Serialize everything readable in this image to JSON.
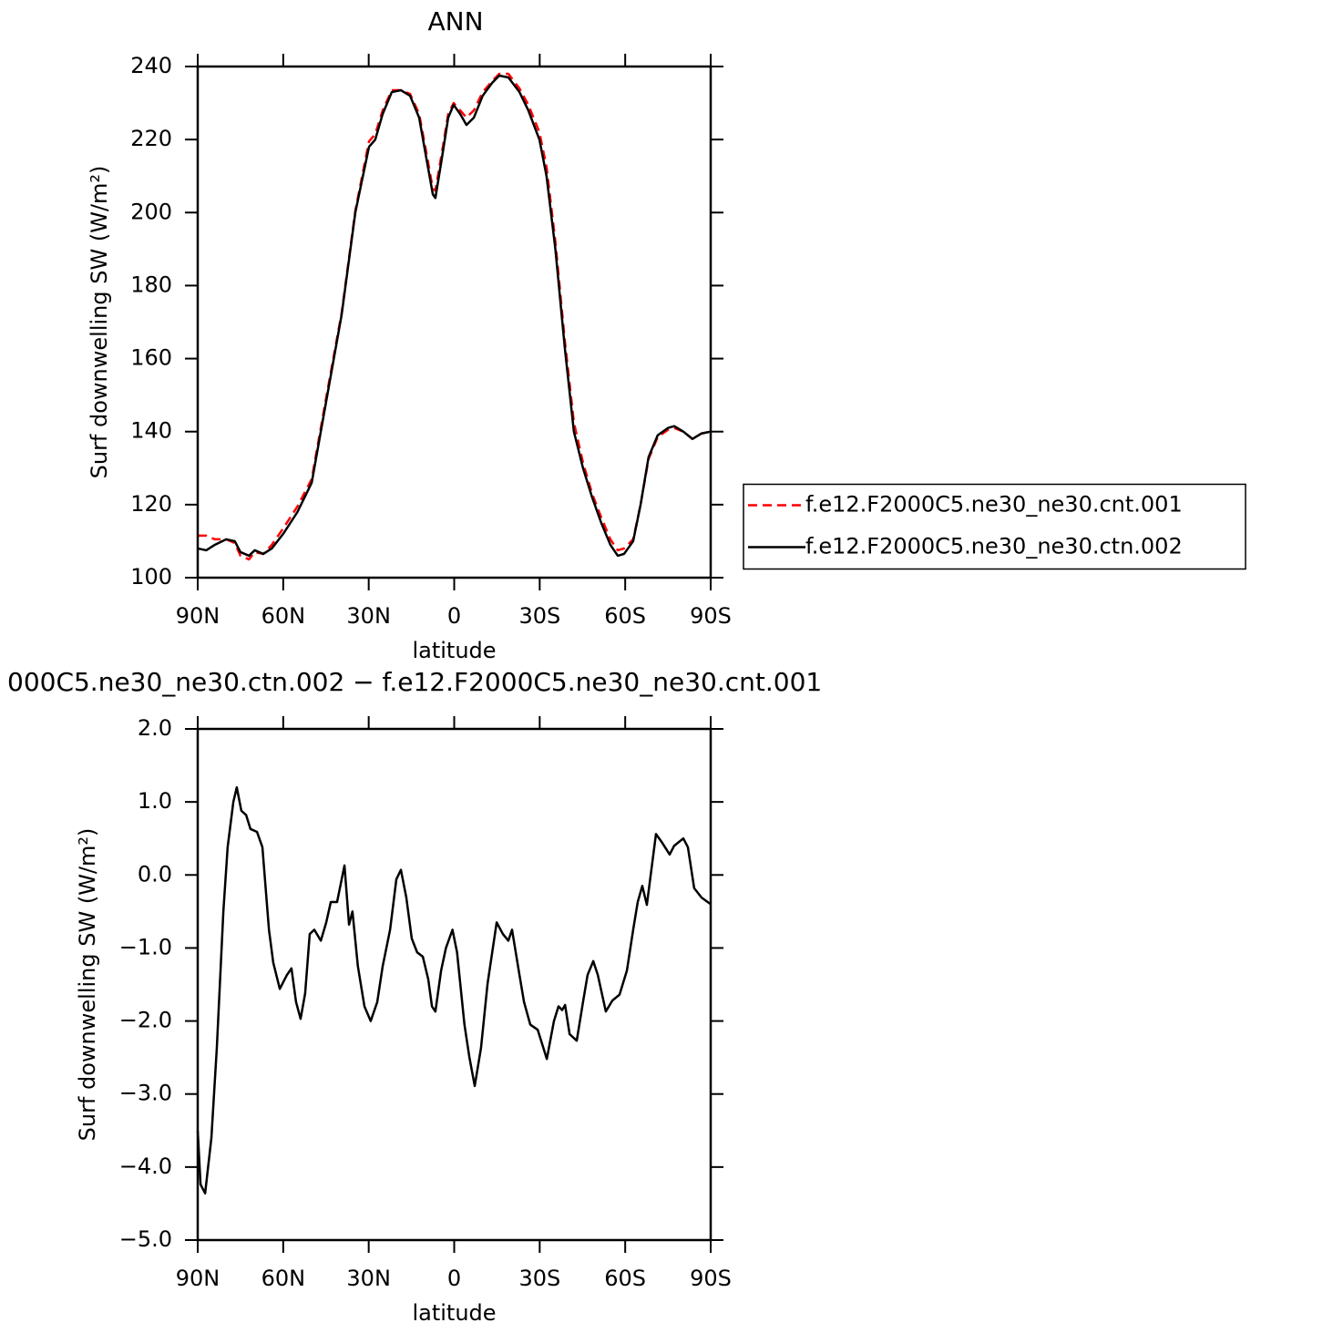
{
  "chart_data": [
    {
      "type": "line",
      "title": "ANN",
      "xlabel": "latitude",
      "ylabel": "Surf downwelling SW (W/m²)",
      "x": [
        90,
        87,
        84,
        80,
        77,
        75,
        72,
        70,
        67,
        64,
        60,
        55,
        50,
        44.3,
        39.5,
        34.7,
        29.9,
        27.7,
        25.1,
        21.9,
        18.7,
        15.5,
        12.3,
        9.8,
        7.5,
        6.6,
        4.3,
        2.1,
        0.2,
        -2.1,
        -4.3,
        -6.9,
        -10,
        -13.3,
        -15.8,
        -19,
        -22.9,
        -26,
        -29.9,
        -32.4,
        -35.5,
        -38.8,
        -42,
        -45.2,
        -48.4,
        -51.6,
        -54.8,
        -57.4,
        -59.6,
        -62.8,
        -65.4,
        -68.2,
        -71.4,
        -75,
        -77.2,
        -80.4,
        -83.6,
        -86.8,
        -90
      ],
      "series": [
        {
          "name": "f.e12.F2000C5.ne30_ne30.cnt.001",
          "color": "#ff0000",
          "line_style": "dashed",
          "values": [
            111.5,
            111.5,
            110.5,
            110.5,
            109.5,
            106,
            105,
            107,
            106.5,
            109,
            113.5,
            119.5,
            127,
            152,
            172.5,
            200.5,
            219.5,
            221.5,
            228,
            233.5,
            233.5,
            232.5,
            227,
            216.5,
            206.5,
            206,
            216.5,
            227,
            230,
            228,
            226,
            228,
            233,
            236,
            238,
            238,
            234,
            229.5,
            222,
            212.5,
            192,
            165,
            142.5,
            131.5,
            123,
            116.5,
            110.5,
            107.5,
            108,
            110.5,
            120,
            132.5,
            138.5,
            140.5,
            141,
            140,
            138,
            139.5,
            140
          ]
        },
        {
          "name": "f.e12.F2000C5.ne30_ne30.ctn.002",
          "color": "#000000",
          "line_style": "solid",
          "values": [
            108,
            107.5,
            109,
            110.5,
            110,
            107,
            106,
            107.5,
            106.5,
            108,
            112,
            118,
            126,
            151,
            172,
            200,
            218,
            220,
            227,
            233,
            233.5,
            232,
            226,
            215,
            205,
            204,
            215,
            226,
            229.5,
            227,
            224,
            226,
            232,
            235.5,
            237.5,
            237,
            233,
            228,
            220,
            210,
            190,
            163,
            140,
            130,
            122,
            115,
            109,
            106,
            106.5,
            110,
            120,
            133,
            139,
            141,
            141.5,
            140,
            138,
            139.5,
            140
          ]
        }
      ],
      "xlim": [
        90,
        -90
      ],
      "xticks": [
        {
          "value": 90,
          "label": "90N"
        },
        {
          "value": 60,
          "label": "60N"
        },
        {
          "value": 30,
          "label": "30N"
        },
        0,
        {
          "value": -30,
          "label": "30S"
        },
        {
          "value": -60,
          "label": "60S"
        },
        {
          "value": -90,
          "label": "90S"
        }
      ],
      "ylim": [
        100,
        240
      ],
      "yticks": [
        100,
        120,
        140,
        160,
        180,
        200,
        220,
        240
      ],
      "legend": "right"
    },
    {
      "type": "line",
      "title": "000C5.ne30_ne30.ctn.002 − f.e12.F2000C5.ne30_ne30.cnt.001",
      "xlabel": "latitude",
      "ylabel": "Surf downwelling SW (W/m²)",
      "x": [
        90,
        89,
        87.4,
        85.2,
        83.3,
        81,
        79.5,
        77.5,
        76.3,
        74.7,
        73,
        71.5,
        69.2,
        67.3,
        65,
        63.5,
        61.2,
        58.7,
        57.1,
        55.5,
        53.9,
        52.3,
        50.7,
        49.1,
        46.8,
        44.9,
        43.3,
        41.1,
        38.5,
        36.9,
        35.7,
        33.8,
        31.5,
        29.3,
        27,
        25.1,
        22.5,
        20.3,
        18.7,
        16.8,
        14.9,
        13,
        11,
        9.1,
        7.8,
        6.6,
        4.6,
        2.9,
        0.6,
        -1,
        -3.6,
        -5.3,
        -7.2,
        -9.4,
        -11.7,
        -14.9,
        -17.1,
        -19,
        -20.3,
        -22.9,
        -24.5,
        -26.7,
        -29.3,
        -32.5,
        -35,
        -36.6,
        -37.9,
        -38.9,
        -40.5,
        -43,
        -45.2,
        -46.8,
        -48.8,
        -50.4,
        -53.2,
        -55.5,
        -58,
        -60.6,
        -62.8,
        -64.4,
        -66,
        -67.6,
        -70.8,
        -73,
        -75.6,
        -77.2,
        -80.4,
        -82,
        -84.2,
        -86.8,
        -90
      ],
      "series": [
        {
          "color": "#000000",
          "line_style": "solid",
          "values": [
            -3.5,
            -4.24,
            -4.36,
            -3.6,
            -2.37,
            -0.5,
            0.38,
            1.0,
            1.2,
            0.88,
            0.82,
            0.63,
            0.59,
            0.38,
            -0.75,
            -1.2,
            -1.56,
            -1.37,
            -1.28,
            -1.74,
            -1.97,
            -1.62,
            -0.81,
            -0.75,
            -0.9,
            -0.65,
            -0.37,
            -0.37,
            0.13,
            -0.68,
            -0.5,
            -1.25,
            -1.8,
            -2.0,
            -1.74,
            -1.25,
            -0.75,
            -0.06,
            0.07,
            -0.31,
            -0.87,
            -1.06,
            -1.12,
            -1.43,
            -1.8,
            -1.87,
            -1.31,
            -1.0,
            -0.75,
            -1.06,
            -2.05,
            -2.49,
            -2.89,
            -2.37,
            -1.49,
            -0.65,
            -0.81,
            -0.9,
            -0.75,
            -1.37,
            -1.74,
            -2.05,
            -2.12,
            -2.52,
            -2.0,
            -1.8,
            -1.85,
            -1.78,
            -2.18,
            -2.27,
            -1.74,
            -1.37,
            -1.18,
            -1.37,
            -1.87,
            -1.72,
            -1.64,
            -1.31,
            -0.75,
            -0.37,
            -0.15,
            -0.41,
            0.56,
            0.44,
            0.28,
            0.4,
            0.5,
            0.38,
            -0.18,
            -0.31,
            -0.4
          ]
        }
      ],
      "xlim": [
        90,
        -90
      ],
      "xticks": [
        {
          "value": 90,
          "label": "90N"
        },
        {
          "value": 60,
          "label": "60N"
        },
        {
          "value": 30,
          "label": "30N"
        },
        0,
        {
          "value": -30,
          "label": "30S"
        },
        {
          "value": -60,
          "label": "60S"
        },
        {
          "value": -90,
          "label": "90S"
        }
      ],
      "ylim": [
        -5,
        2
      ],
      "yticks": [
        {
          "value": -5,
          "label": "−5.0"
        },
        {
          "value": -4,
          "label": "−4.0"
        },
        {
          "value": -3,
          "label": "−3.0"
        },
        {
          "value": -2,
          "label": "−2.0"
        },
        {
          "value": -1,
          "label": "−1.0"
        },
        {
          "value": 0,
          "label": "0.0"
        },
        {
          "value": 1,
          "label": "1.0"
        },
        {
          "value": 2,
          "label": "2.0"
        }
      ]
    }
  ]
}
